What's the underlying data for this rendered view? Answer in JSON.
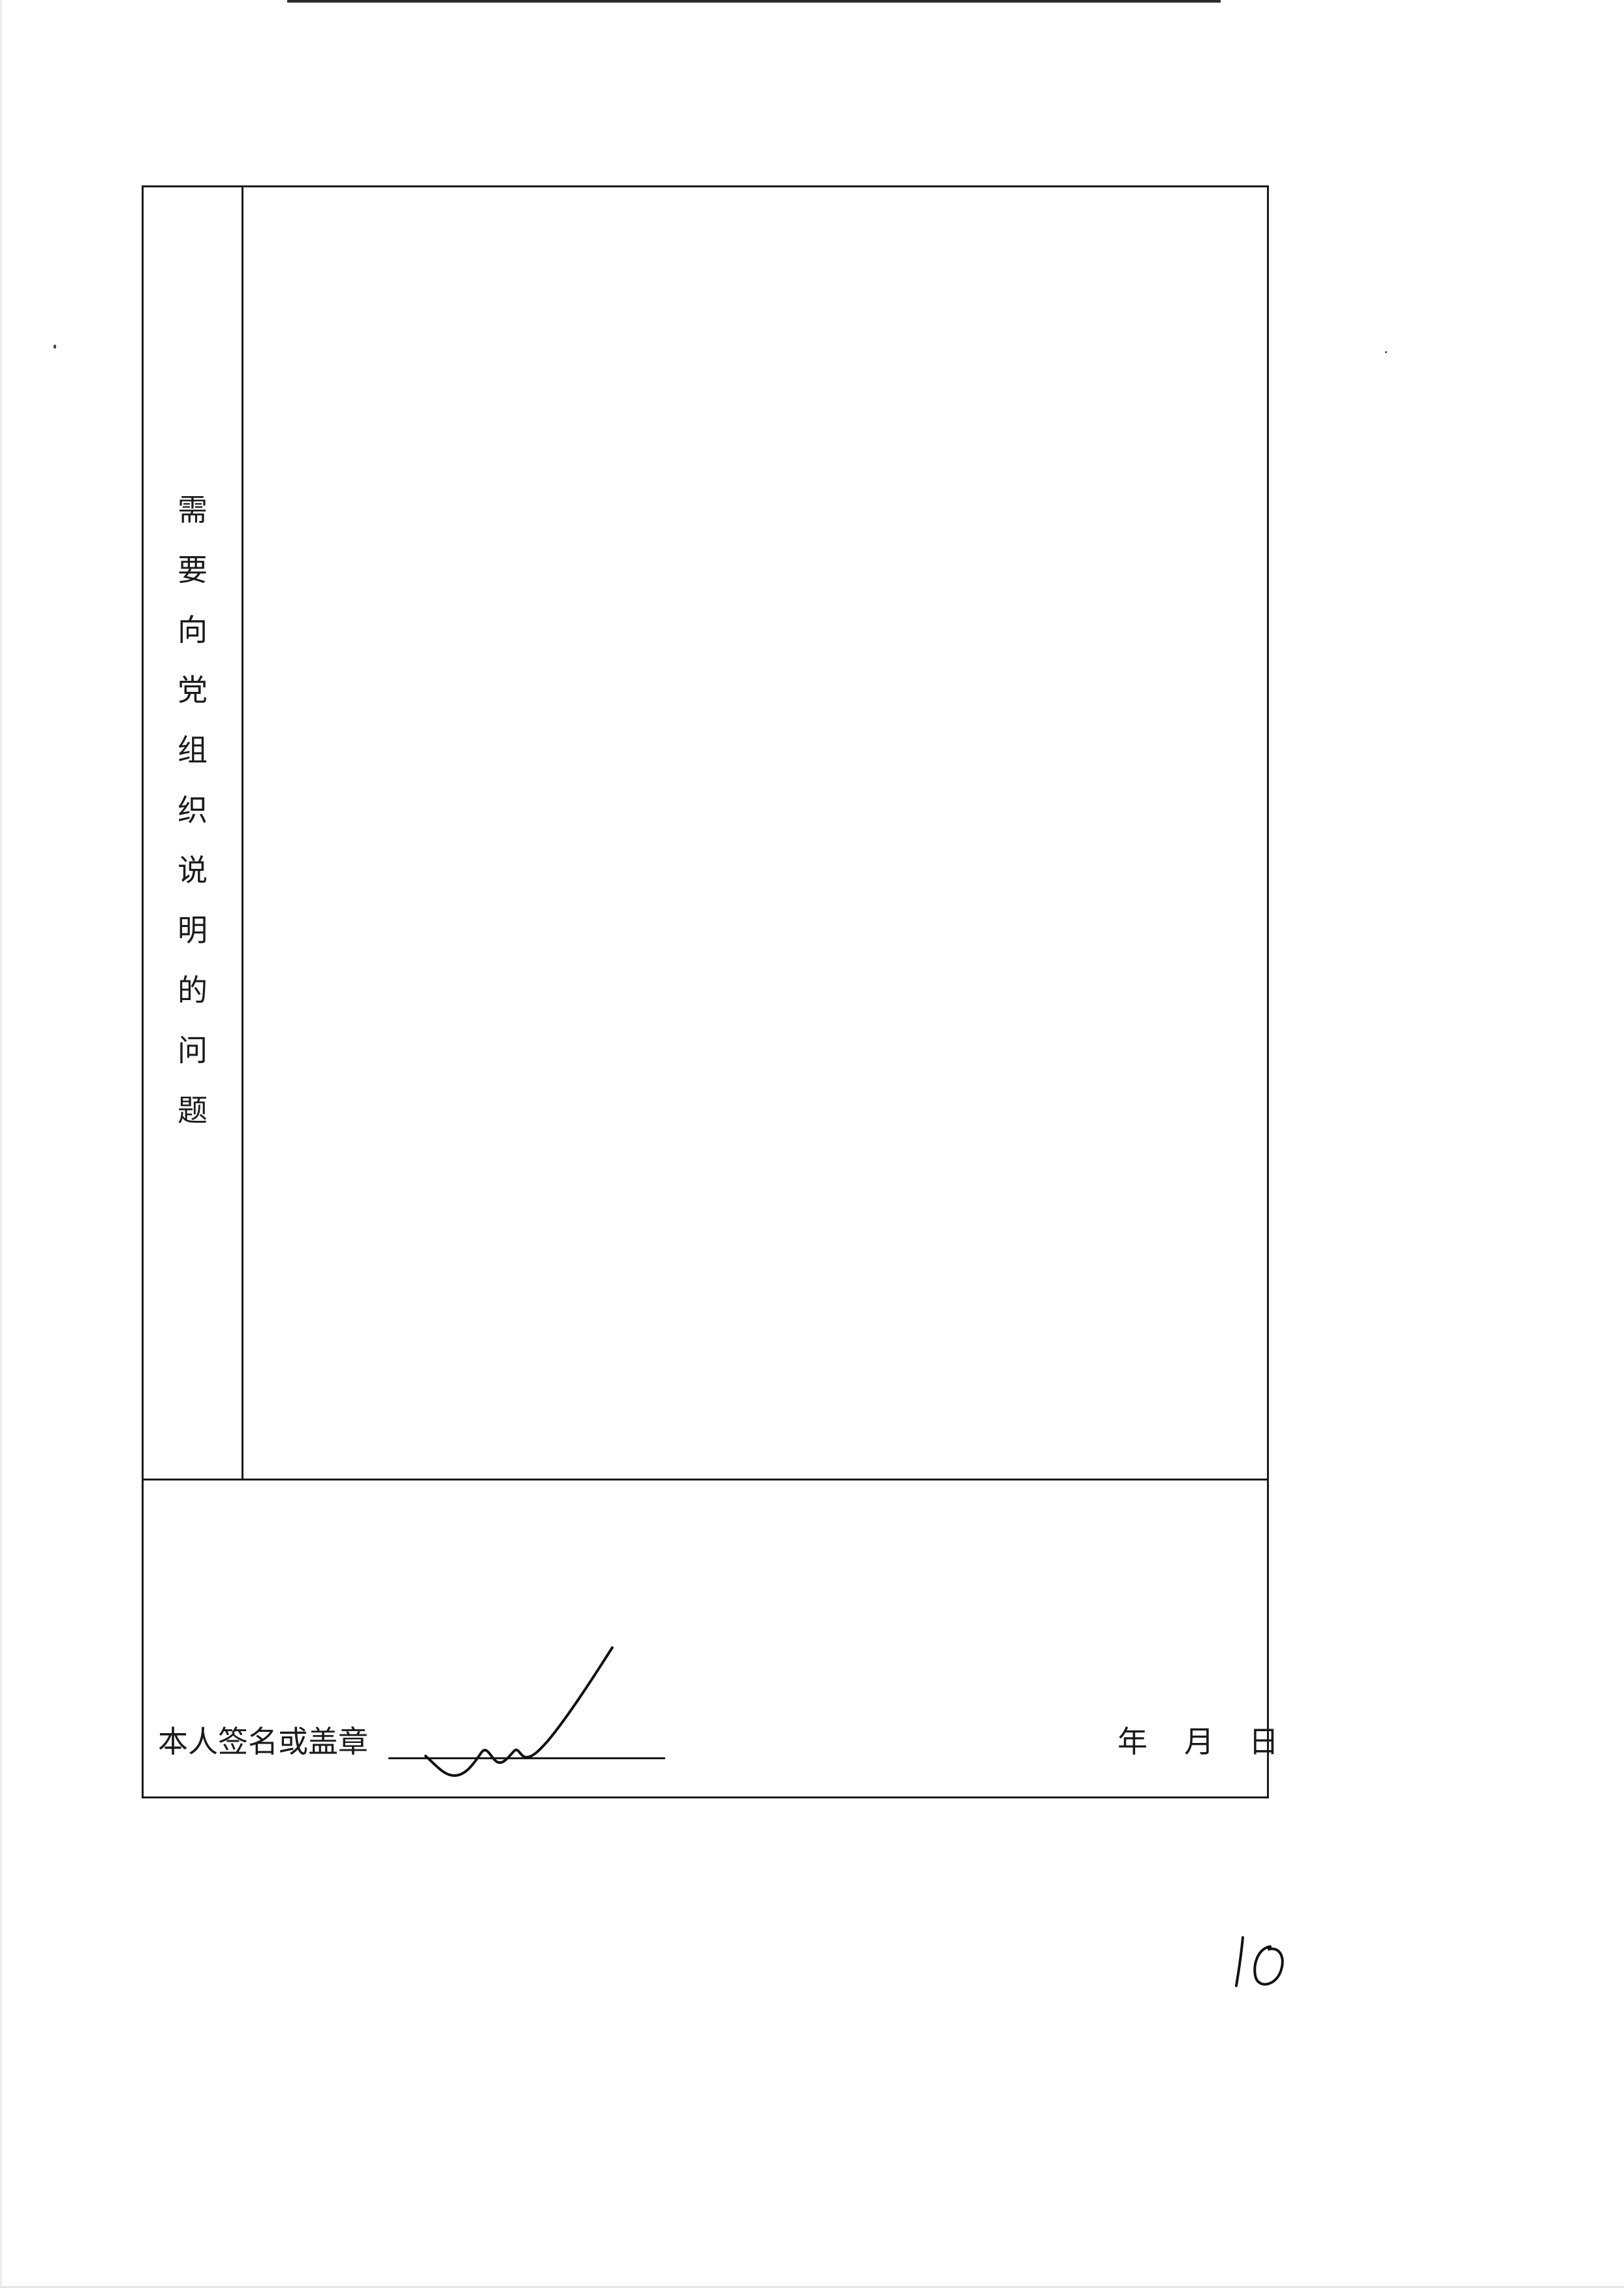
{
  "form": {
    "section_label_chars": [
      "需",
      "要",
      "向",
      "党",
      "组",
      "织",
      "说",
      "明",
      "的",
      "问",
      "题"
    ],
    "content_text": "",
    "signature_label": "本人签名或盖章",
    "date": {
      "year_label": "年",
      "month_label": "月",
      "day_label": "日"
    }
  },
  "page_number": "10",
  "colors": {
    "ink": "#1a1a1a",
    "paper": "#ffffff"
  }
}
